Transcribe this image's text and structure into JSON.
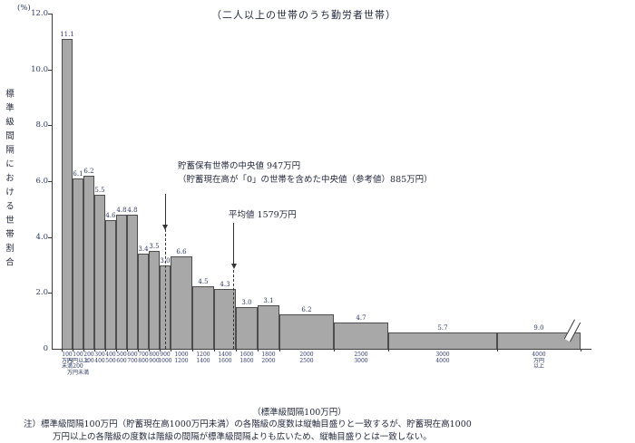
{
  "chart_data": {
    "type": "bar",
    "title": "（二人以上の世帯のうち勤労者世帯）",
    "y_unit": "(%)",
    "ylabel": "標準級間隔における世帯割合",
    "xlabel": "（標準級間隔100万円）",
    "ylim": [
      0,
      12
    ],
    "yticks": [
      "12.0",
      "10.0",
      "8.0",
      "6.0",
      "4.0",
      "2.0",
      "0"
    ],
    "bars": [
      {
        "range": "100万円未満",
        "tick_lines": [
          "100",
          "万円",
          "未満"
        ],
        "lo": 0,
        "hi": 100,
        "units": 1,
        "value": 11.1
      },
      {
        "range": "100万円以上200万円未満",
        "tick_lines": [
          "100",
          "万円以上",
          "200",
          "万円未満"
        ],
        "lo": 100,
        "hi": 200,
        "units": 1,
        "value": 6.1
      },
      {
        "range": "200〜300",
        "tick_lines": [
          "200",
          "300"
        ],
        "lo": 200,
        "hi": 300,
        "units": 1,
        "value": 6.2
      },
      {
        "range": "300〜400",
        "tick_lines": [
          "300",
          "400"
        ],
        "lo": 300,
        "hi": 400,
        "units": 1,
        "value": 5.5
      },
      {
        "range": "400〜500",
        "tick_lines": [
          "400",
          "500"
        ],
        "lo": 400,
        "hi": 500,
        "units": 1,
        "value": 4.6
      },
      {
        "range": "500〜600",
        "tick_lines": [
          "500",
          "600"
        ],
        "lo": 500,
        "hi": 600,
        "units": 1,
        "value": 4.8
      },
      {
        "range": "600〜700",
        "tick_lines": [
          "600",
          "700"
        ],
        "lo": 600,
        "hi": 700,
        "units": 1,
        "value": 4.8
      },
      {
        "range": "700〜800",
        "tick_lines": [
          "700",
          "800"
        ],
        "lo": 700,
        "hi": 800,
        "units": 1,
        "value": 3.4
      },
      {
        "range": "800〜900",
        "tick_lines": [
          "800",
          "900"
        ],
        "lo": 800,
        "hi": 900,
        "units": 1,
        "value": 3.5
      },
      {
        "range": "900〜1000",
        "tick_lines": [
          "900",
          "1000"
        ],
        "lo": 900,
        "hi": 1000,
        "units": 1,
        "value": 3.0
      },
      {
        "range": "1000〜1200",
        "tick_lines": [
          "1000",
          "1200"
        ],
        "lo": 1000,
        "hi": 1200,
        "units": 2,
        "value": 6.6
      },
      {
        "range": "1200〜1400",
        "tick_lines": [
          "1200",
          "1400"
        ],
        "lo": 1200,
        "hi": 1400,
        "units": 2,
        "value": 4.5
      },
      {
        "range": "1400〜1600",
        "tick_lines": [
          "1400",
          "1600"
        ],
        "lo": 1400,
        "hi": 1600,
        "units": 2,
        "value": 4.3
      },
      {
        "range": "1600〜1800",
        "tick_lines": [
          "1600",
          "1800"
        ],
        "lo": 1600,
        "hi": 1800,
        "units": 2,
        "value": 3.0
      },
      {
        "range": "1800〜2000",
        "tick_lines": [
          "1800",
          "2000"
        ],
        "lo": 1800,
        "hi": 2000,
        "units": 2,
        "value": 3.1
      },
      {
        "range": "2000〜2500",
        "tick_lines": [
          "2000",
          "2500"
        ],
        "lo": 2000,
        "hi": 2500,
        "units": 5,
        "value": 6.2
      },
      {
        "range": "2500〜3000",
        "tick_lines": [
          "2500",
          "3000"
        ],
        "lo": 2500,
        "hi": 3000,
        "units": 5,
        "value": 4.7
      },
      {
        "range": "3000〜4000",
        "tick_lines": [
          "3000",
          "4000"
        ],
        "lo": 3000,
        "hi": 4000,
        "units": 10,
        "value": 5.7
      },
      {
        "range": "4000万円以上",
        "tick_lines": [
          "4000",
          "万円",
          "以上"
        ],
        "lo": 4000,
        "hi": null,
        "units": null,
        "value": 9.0,
        "open_ended": true,
        "drawn_pct": 0.6
      }
    ],
    "annotations": {
      "median": {
        "label": "貯蓄保有世帯の中央値 947万円",
        "sub": "（貯蓄現在高が「0」の世帯を含めた中央値（参考値）885万円）",
        "value_manyen": 947,
        "reference_value_manyen": 885
      },
      "mean": {
        "label": "平均値 1579万円",
        "value_manyen": 1579
      }
    }
  },
  "footnote": {
    "line1": "注）標準級間隔100万円（貯蓄現在高1000万円未満）の各階級の度数は縦軸目盛りと一致するが、貯蓄現在高1000",
    "line2": "万円以上の各階級の度数は階級の間隔が標準級間隔よりも広いため、縦軸目盛りとは一致しない。"
  },
  "colors": {
    "bar_fill": "#a8a8a8",
    "bar_border": "#4d4d4d",
    "text": "#242a3e",
    "numbers": "#2e3a66"
  }
}
